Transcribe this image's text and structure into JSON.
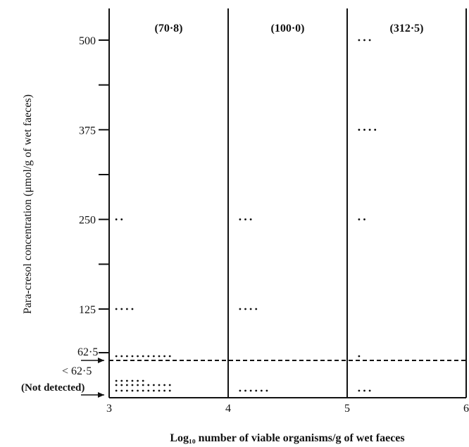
{
  "chart_data": {
    "type": "scatter",
    "xlabel": "Log₁₀ number of viable organisms/g of wet faeces",
    "ylabel": "Para-cresol concentration (μmol/g of wet faeces)",
    "x_ticks": [
      "3",
      "4",
      "5",
      "6"
    ],
    "xlim": [
      3,
      6
    ],
    "y_ticks": [
      {
        "value": 500,
        "label": "500"
      },
      {
        "value": 375,
        "label": "375"
      },
      {
        "value": 250,
        "label": "250"
      },
      {
        "value": 125,
        "label": "125"
      }
    ],
    "y_minor_ticks": [
      437.5,
      312.5,
      187.5
    ],
    "low_labels": {
      "cutoff": "62·5",
      "below": "< 62·5",
      "not_detected": "(Not detected)"
    },
    "detection_limit": 62.5,
    "panel_labels": [
      "(70·8)",
      "(100·0)",
      "(312·5)"
    ],
    "dividers_x": [
      4,
      5
    ],
    "dot_spacing_x": 0.045,
    "dot_groups": [
      {
        "x_start": 3.06,
        "y": 500,
        "count": 0
      },
      {
        "x_start": 5.1,
        "y": 500,
        "count": 3
      },
      {
        "x_start": 5.1,
        "y": 375,
        "count": 4
      },
      {
        "x_start": 3.06,
        "y": 250,
        "count": 2
      },
      {
        "x_start": 4.1,
        "y": 250,
        "count": 3
      },
      {
        "x_start": 5.1,
        "y": 250,
        "count": 2
      },
      {
        "x_start": 3.06,
        "y": 125,
        "count": 4
      },
      {
        "x_start": 4.1,
        "y": 125,
        "count": 4
      },
      {
        "x_start": 3.06,
        "y": 66,
        "count": 11
      },
      {
        "x_start": 5.1,
        "y": 66,
        "count": 1
      },
      {
        "x_start": 3.06,
        "y": "nd_row1",
        "count": 6
      },
      {
        "x_start": 3.06,
        "y": "nd_row2",
        "count": 11
      },
      {
        "x_start": 3.06,
        "y": "nd_row3",
        "count": 11
      },
      {
        "x_start": 4.1,
        "y": "nd_row3",
        "count": 6
      },
      {
        "x_start": 5.1,
        "y": "nd_row3",
        "count": 3
      }
    ]
  }
}
